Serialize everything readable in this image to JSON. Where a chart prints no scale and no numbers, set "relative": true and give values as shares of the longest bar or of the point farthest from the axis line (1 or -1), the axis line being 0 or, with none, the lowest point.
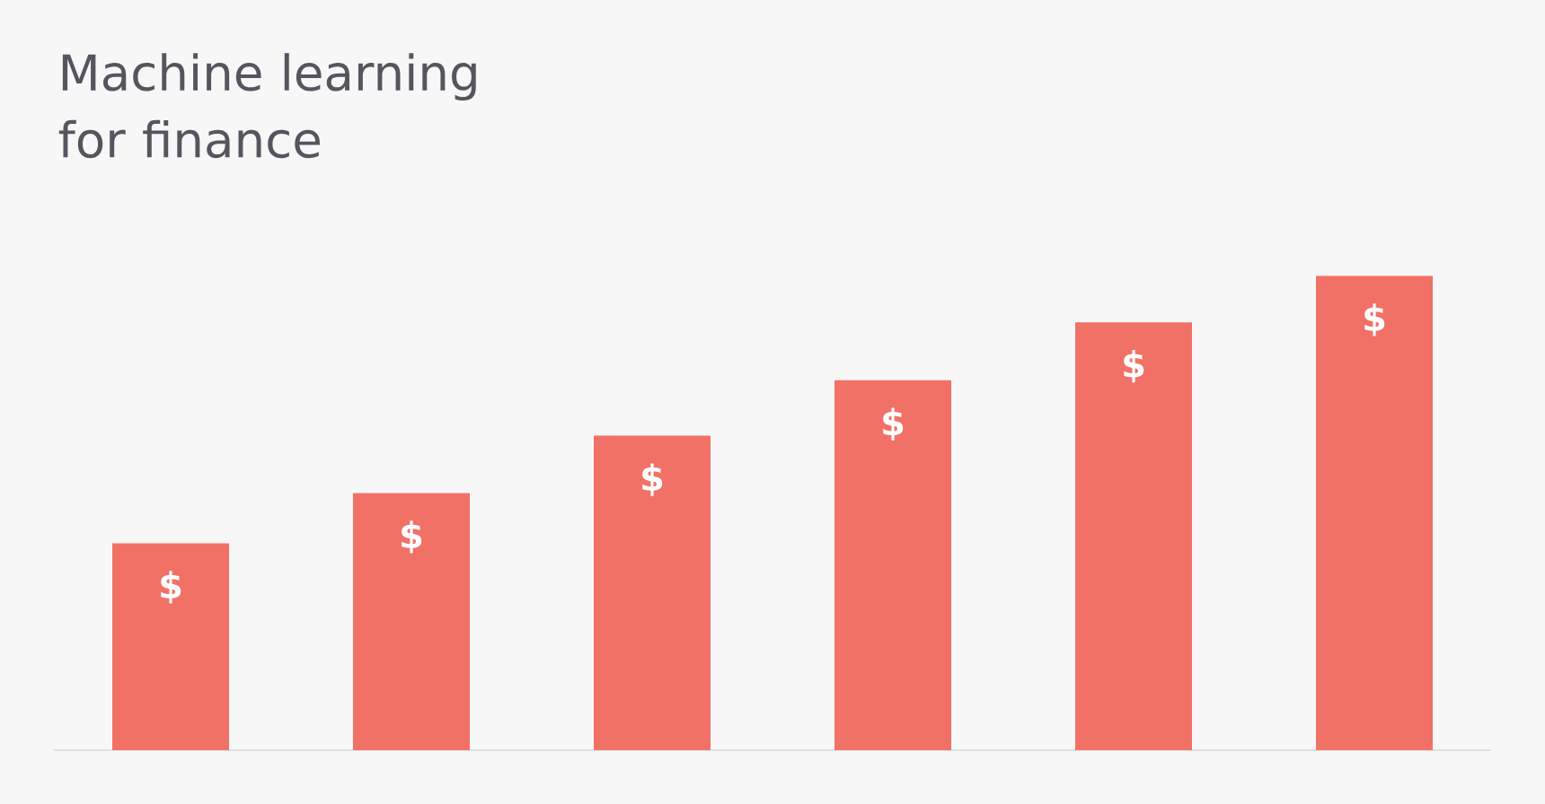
{
  "chart_data": {
    "type": "bar",
    "title": "Machine learning for finance",
    "categories": [
      null,
      null,
      null,
      null,
      null,
      null
    ],
    "values": [
      0.436,
      0.542,
      0.663,
      0.78,
      0.902,
      1
    ],
    "annotations": [
      "$",
      "$",
      "$",
      "$",
      "$",
      "$"
    ],
    "color": "#f27166",
    "relative": true
  }
}
